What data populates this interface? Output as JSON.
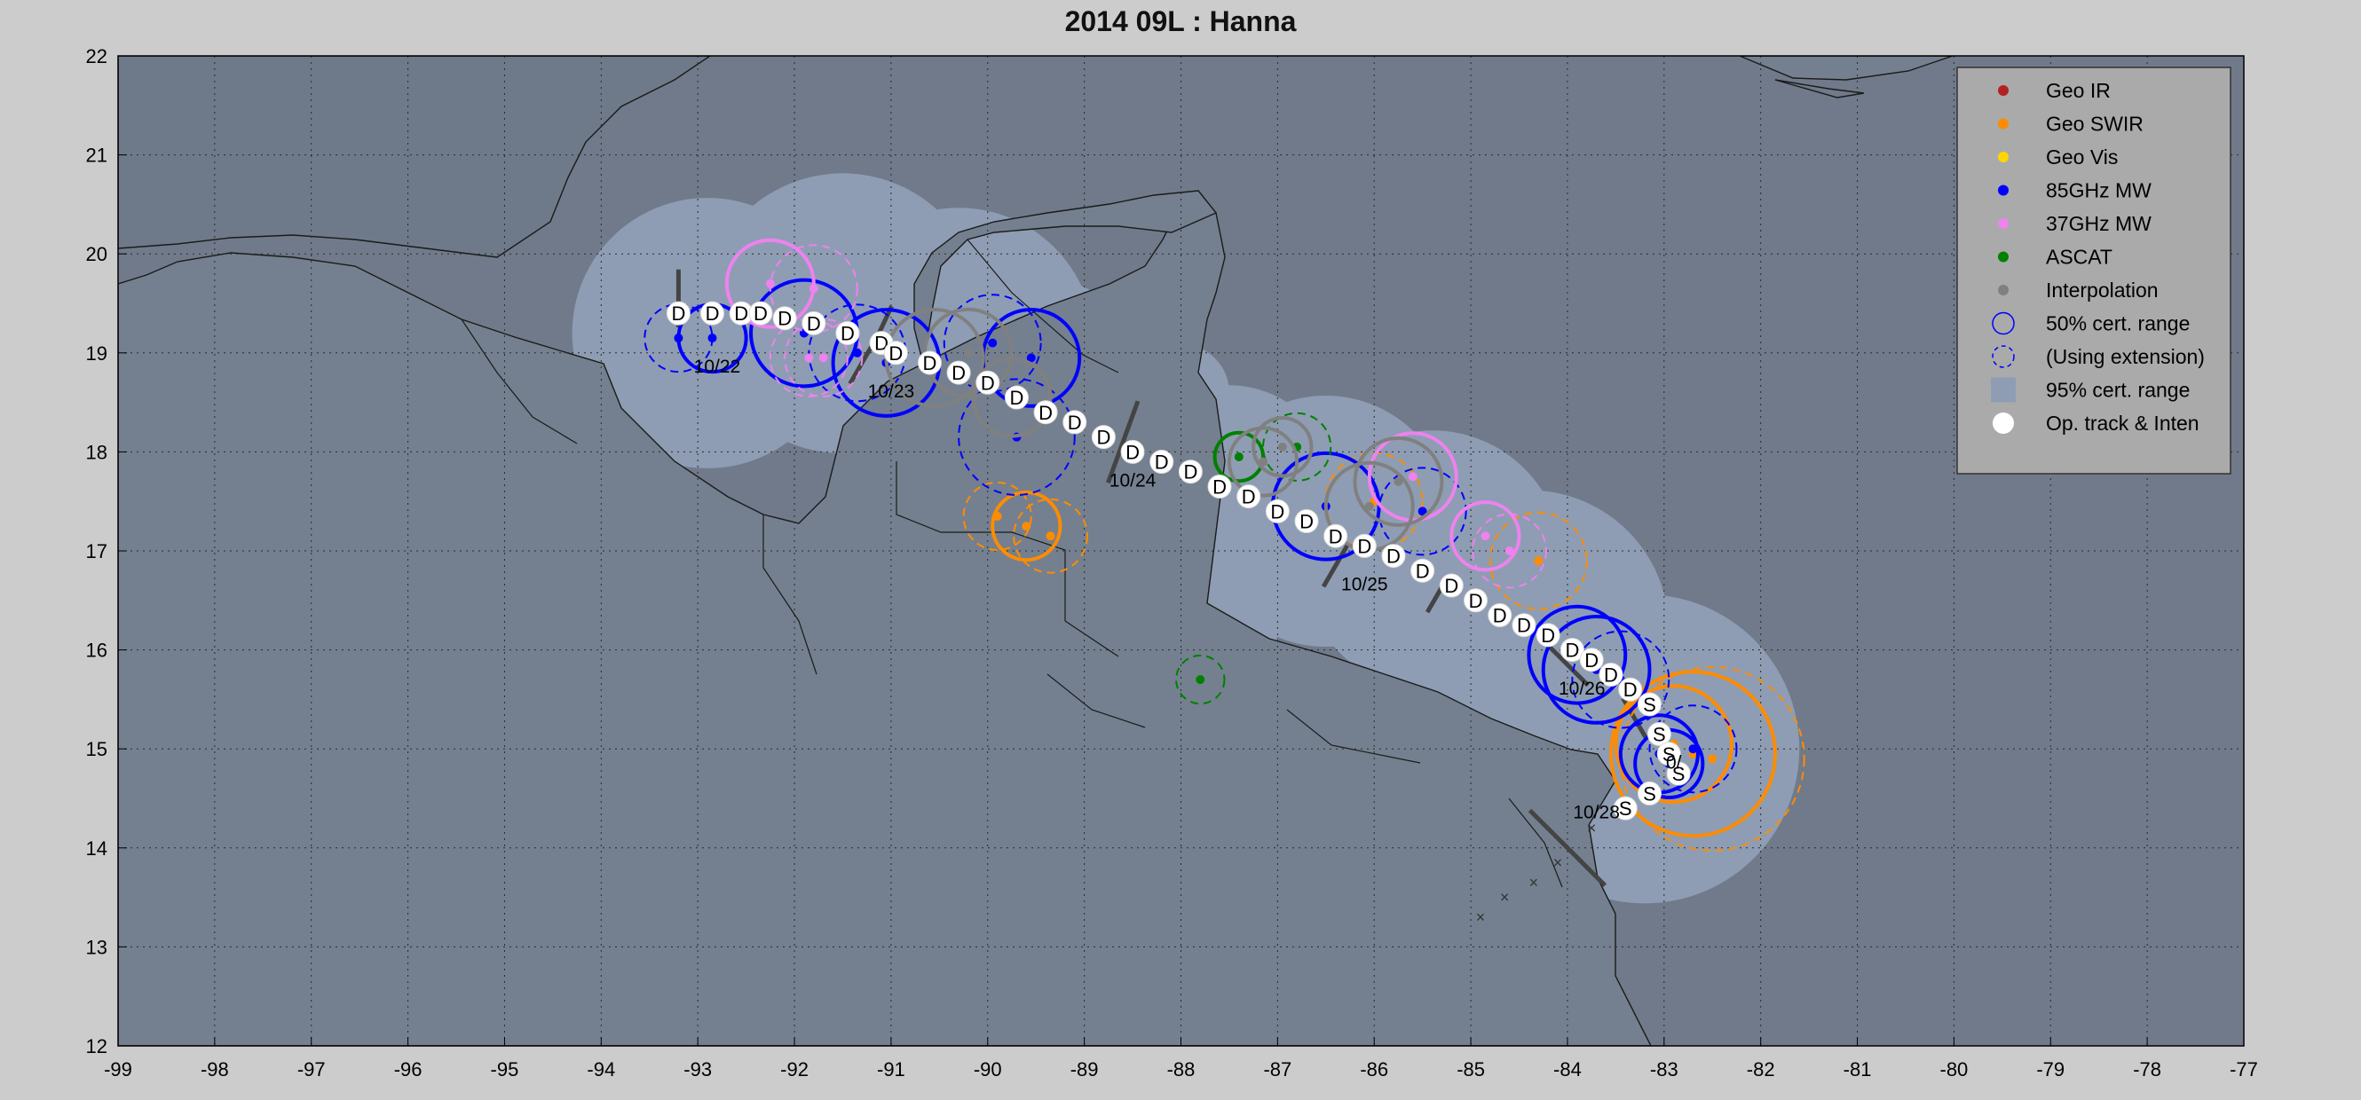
{
  "chart_data": {
    "type": "scatter",
    "title": "2014  09L :  Hanna",
    "xlabel": "",
    "ylabel": "",
    "xlim": [
      -99,
      -77
    ],
    "ylim": [
      12,
      22
    ],
    "xticks": [
      -99,
      -98,
      -97,
      -96,
      -95,
      -94,
      -93,
      -92,
      -91,
      -90,
      -89,
      -88,
      -87,
      -86,
      -85,
      -84,
      -83,
      -82,
      -81,
      -80,
      -79,
      -78,
      -77
    ],
    "yticks": [
      12,
      13,
      14,
      15,
      16,
      17,
      18,
      19,
      20,
      21,
      22
    ],
    "grid": true,
    "legend_position": "top-right",
    "colors": {
      "background": "#cccccc",
      "ocean": "#707a8a",
      "envelope": "#8e9db3",
      "coast": "#1a1a1a",
      "geo_ir": "#b22222",
      "geo_swir": "#ff8c00",
      "geo_vis": "#ffd700",
      "mw85": "#0000ff",
      "mw37": "#ee82ee",
      "ascat": "#008000",
      "interp": "#808080",
      "track": "#ffffff"
    },
    "legend": [
      {
        "label": "Geo IR",
        "symbol": "dot",
        "color": "#b22222"
      },
      {
        "label": "Geo SWIR",
        "symbol": "dot",
        "color": "#ff8c00"
      },
      {
        "label": "Geo Vis",
        "symbol": "dot",
        "color": "#ffd700"
      },
      {
        "label": "85GHz MW",
        "symbol": "dot",
        "color": "#0000ff"
      },
      {
        "label": "37GHz MW",
        "symbol": "dot",
        "color": "#ee82ee"
      },
      {
        "label": "ASCAT",
        "symbol": "dot",
        "color": "#008000"
      },
      {
        "label": "Interpolation",
        "symbol": "dot",
        "color": "#808080"
      },
      {
        "label": "50% cert. range",
        "symbol": "circle",
        "color": "#0000ff"
      },
      {
        "label": "(Using extension)",
        "symbol": "dashed-circle",
        "color": "#0000ff"
      },
      {
        "label": "95% cert. range",
        "symbol": "square",
        "color": "#8e9db3"
      },
      {
        "label": "Op. track & Inten",
        "symbol": "white-dot",
        "color": "#ffffff"
      }
    ],
    "track": [
      {
        "x": -93.2,
        "y": 19.4,
        "label": "D"
      },
      {
        "x": -92.85,
        "y": 19.4,
        "label": "D"
      },
      {
        "x": -92.55,
        "y": 19.4,
        "label": "D"
      },
      {
        "x": -92.35,
        "y": 19.4,
        "label": "D"
      },
      {
        "x": -92.1,
        "y": 19.35,
        "label": "D"
      },
      {
        "x": -91.8,
        "y": 19.3,
        "label": "D"
      },
      {
        "x": -91.45,
        "y": 19.2,
        "label": "D"
      },
      {
        "x": -91.1,
        "y": 19.1,
        "label": "D"
      },
      {
        "x": -90.95,
        "y": 19.0,
        "label": "D"
      },
      {
        "x": -90.6,
        "y": 18.9,
        "label": "D"
      },
      {
        "x": -90.3,
        "y": 18.8,
        "label": "D"
      },
      {
        "x": -90.0,
        "y": 18.7,
        "label": "D"
      },
      {
        "x": -89.7,
        "y": 18.55,
        "label": "D"
      },
      {
        "x": -89.4,
        "y": 18.4,
        "label": "D"
      },
      {
        "x": -89.1,
        "y": 18.3,
        "label": "D"
      },
      {
        "x": -88.8,
        "y": 18.15,
        "label": "D"
      },
      {
        "x": -88.5,
        "y": 18.0,
        "label": "D"
      },
      {
        "x": -88.2,
        "y": 17.9,
        "label": "D"
      },
      {
        "x": -87.9,
        "y": 17.8,
        "label": "D"
      },
      {
        "x": -87.6,
        "y": 17.65,
        "label": "D"
      },
      {
        "x": -87.3,
        "y": 17.55,
        "label": "D"
      },
      {
        "x": -87.0,
        "y": 17.4,
        "label": "D"
      },
      {
        "x": -86.7,
        "y": 17.3,
        "label": "D"
      },
      {
        "x": -86.4,
        "y": 17.15,
        "label": "D"
      },
      {
        "x": -86.1,
        "y": 17.05,
        "label": "D"
      },
      {
        "x": -85.8,
        "y": 16.95,
        "label": "D"
      },
      {
        "x": -85.5,
        "y": 16.8,
        "label": "D"
      },
      {
        "x": -85.2,
        "y": 16.65,
        "label": "D"
      },
      {
        "x": -84.95,
        "y": 16.5,
        "label": "D"
      },
      {
        "x": -84.7,
        "y": 16.35,
        "label": "D"
      },
      {
        "x": -84.45,
        "y": 16.25,
        "label": "D"
      },
      {
        "x": -84.2,
        "y": 16.15,
        "label": "D"
      },
      {
        "x": -83.95,
        "y": 16.0,
        "label": "D"
      },
      {
        "x": -83.75,
        "y": 15.9,
        "label": "D"
      },
      {
        "x": -83.55,
        "y": 15.75,
        "label": "D"
      },
      {
        "x": -83.35,
        "y": 15.6,
        "label": "D"
      },
      {
        "x": -83.15,
        "y": 15.45,
        "label": "S"
      },
      {
        "x": -83.05,
        "y": 15.15,
        "label": "S"
      },
      {
        "x": -82.95,
        "y": 14.95,
        "label": "S"
      },
      {
        "x": -82.85,
        "y": 14.75,
        "label": "S"
      },
      {
        "x": -83.15,
        "y": 14.55,
        "label": "S"
      },
      {
        "x": -83.4,
        "y": 14.4,
        "label": "S"
      }
    ],
    "date_labels": [
      {
        "text": "10/22",
        "x": -92.8,
        "y": 18.8
      },
      {
        "text": "10/23",
        "x": -91.0,
        "y": 18.55
      },
      {
        "text": "10/24",
        "x": -88.5,
        "y": 17.65
      },
      {
        "text": "10/25",
        "x": -86.1,
        "y": 16.6
      },
      {
        "text": "10/26",
        "x": -83.85,
        "y": 15.55
      },
      {
        "text": "0/",
        "x": -82.9,
        "y": 14.8
      },
      {
        "text": "10/28",
        "x": -83.7,
        "y": 14.3
      }
    ],
    "series": [
      {
        "name": "Geo SWIR",
        "color": "#ff8c00",
        "points": [
          {
            "x": -89.9,
            "y": 17.35,
            "r": 0.35,
            "dashed": true
          },
          {
            "x": -89.6,
            "y": 17.25,
            "r": 0.35,
            "dashed": false
          },
          {
            "x": -89.35,
            "y": 17.15,
            "r": 0.38,
            "dashed": true
          },
          {
            "x": -86.0,
            "y": 17.5,
            "r": 0.5,
            "dashed": true
          },
          {
            "x": -84.3,
            "y": 16.9,
            "r": 0.5,
            "dashed": true
          },
          {
            "x": -82.7,
            "y": 14.95,
            "r": 0.85,
            "dashed": false
          },
          {
            "x": -82.5,
            "y": 14.9,
            "r": 0.95,
            "dashed": true
          },
          {
            "x": -82.9,
            "y": 15.05,
            "r": 0.6,
            "dashed": false
          }
        ]
      },
      {
        "name": "85GHz MW",
        "color": "#0000ff",
        "points": [
          {
            "x": -93.2,
            "y": 19.15,
            "r": 0.35,
            "dashed": true
          },
          {
            "x": -92.85,
            "y": 19.15,
            "r": 0.35,
            "dashed": false
          },
          {
            "x": -91.9,
            "y": 19.2,
            "r": 0.55,
            "dashed": false
          },
          {
            "x": -91.35,
            "y": 19.0,
            "r": 0.5,
            "dashed": true
          },
          {
            "x": -91.05,
            "y": 18.9,
            "r": 0.55,
            "dashed": false
          },
          {
            "x": -89.95,
            "y": 19.1,
            "r": 0.5,
            "dashed": true
          },
          {
            "x": -89.55,
            "y": 18.95,
            "r": 0.5,
            "dashed": false
          },
          {
            "x": -89.7,
            "y": 18.15,
            "r": 0.6,
            "dashed": true
          },
          {
            "x": -86.5,
            "y": 17.45,
            "r": 0.55,
            "dashed": false
          },
          {
            "x": -85.5,
            "y": 17.4,
            "r": 0.45,
            "dashed": true
          },
          {
            "x": -83.9,
            "y": 15.95,
            "r": 0.5,
            "dashed": false
          },
          {
            "x": -83.7,
            "y": 15.8,
            "r": 0.55,
            "dashed": false
          },
          {
            "x": -83.45,
            "y": 15.7,
            "r": 0.5,
            "dashed": true
          },
          {
            "x": -82.7,
            "y": 15.0,
            "r": 0.45,
            "dashed": true
          },
          {
            "x": -83.05,
            "y": 14.95,
            "r": 0.4,
            "dashed": false
          },
          {
            "x": -82.95,
            "y": 14.85,
            "r": 0.35,
            "dashed": false
          }
        ]
      },
      {
        "name": "37GHz MW",
        "color": "#ee82ee",
        "points": [
          {
            "x": -92.25,
            "y": 19.7,
            "r": 0.45,
            "dashed": false
          },
          {
            "x": -91.8,
            "y": 19.65,
            "r": 0.45,
            "dashed": true
          },
          {
            "x": -91.85,
            "y": 18.95,
            "r": 0.4,
            "dashed": true
          },
          {
            "x": -91.7,
            "y": 18.95,
            "r": 0.4,
            "dashed": true
          },
          {
            "x": -85.6,
            "y": 17.75,
            "r": 0.45,
            "dashed": false
          },
          {
            "x": -84.85,
            "y": 17.15,
            "r": 0.35,
            "dashed": false
          },
          {
            "x": -84.6,
            "y": 17.0,
            "r": 0.38,
            "dashed": true
          }
        ]
      },
      {
        "name": "ASCAT",
        "color": "#008000",
        "points": [
          {
            "x": -87.4,
            "y": 17.95,
            "r": 0.25,
            "dashed": false
          },
          {
            "x": -86.8,
            "y": 18.05,
            "r": 0.35,
            "dashed": true
          },
          {
            "x": -87.8,
            "y": 15.7,
            "r": 0.25,
            "dashed": true
          }
        ]
      },
      {
        "name": "Interpolation",
        "color": "#808080",
        "points": [
          {
            "x": -90.55,
            "y": 18.95,
            "r": 0.5,
            "dashed": false
          },
          {
            "x": -90.2,
            "y": 19.0,
            "r": 0.45,
            "dashed": false
          },
          {
            "x": -89.75,
            "y": 18.55,
            "r": 0.4,
            "dashed": false
          },
          {
            "x": -86.95,
            "y": 18.05,
            "r": 0.3,
            "dashed": false
          },
          {
            "x": -87.15,
            "y": 17.9,
            "r": 0.35,
            "dashed": false
          },
          {
            "x": -85.75,
            "y": 17.7,
            "r": 0.45,
            "dashed": false
          },
          {
            "x": -86.05,
            "y": 17.45,
            "r": 0.45,
            "dashed": false
          }
        ]
      }
    ],
    "wind_bars": [
      {
        "x": -93.2,
        "y": 19.55,
        "len": 0.3,
        "ang": 90
      },
      {
        "x": -91.1,
        "y": 19.25,
        "len": 0.25,
        "ang": 65
      },
      {
        "x": -91.3,
        "y": 18.9,
        "len": 0.25,
        "ang": 60
      },
      {
        "x": -88.6,
        "y": 18.1,
        "len": 0.45,
        "ang": 70
      },
      {
        "x": -86.4,
        "y": 16.85,
        "len": 0.25,
        "ang": 60
      },
      {
        "x": -85.35,
        "y": 16.55,
        "len": 0.2,
        "ang": 60
      },
      {
        "x": -84.0,
        "y": 15.85,
        "len": 0.3,
        "ang": 135
      },
      {
        "x": -83.3,
        "y": 15.3,
        "len": 0.25,
        "ang": 120
      },
      {
        "x": -84.0,
        "y": 14.0,
        "len": 0.55,
        "ang": 135
      }
    ],
    "crosses": [
      {
        "x": -84.9,
        "y": 13.3
      },
      {
        "x": -84.65,
        "y": 13.5
      },
      {
        "x": -84.35,
        "y": 13.65
      },
      {
        "x": -84.1,
        "y": 13.85
      },
      {
        "x": -83.75,
        "y": 14.2
      }
    ]
  }
}
